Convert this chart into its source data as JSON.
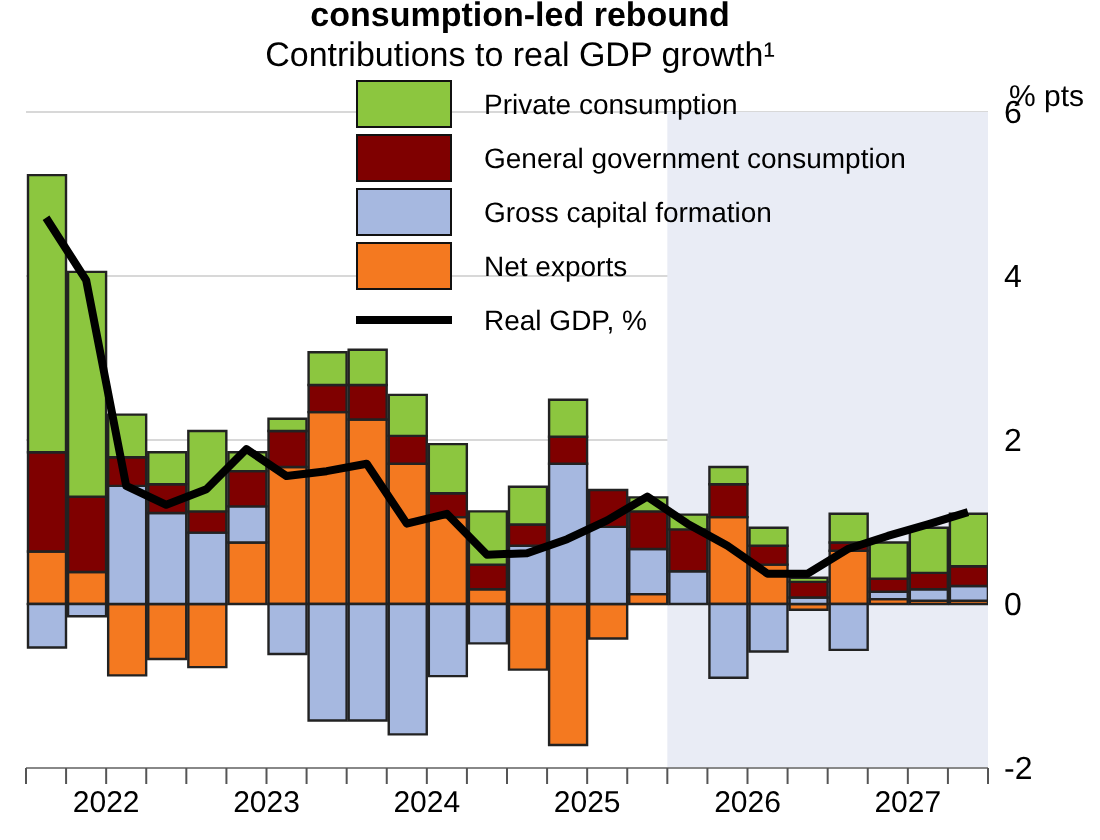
{
  "chart_data": {
    "type": "bar",
    "title": "consumption-led rebound",
    "subtitle": "Contributions to real GDP growth¹",
    "ylabel": "% pts",
    "stacked": true,
    "x": [
      2022.125,
      2022.375,
      2022.625,
      2022.875,
      2023.125,
      2023.375,
      2023.625,
      2023.875,
      2024.125,
      2024.375,
      2024.625,
      2024.875,
      2025.125,
      2025.375,
      2025.625,
      2025.875,
      2026.125,
      2026.375,
      2026.625,
      2026.875,
      2027.125,
      2027.375,
      2027.625,
      2027.875
    ],
    "series": [
      {
        "name": "Net exports",
        "color": "#f47920",
        "values": [
          0.64,
          0.39,
          -0.87,
          -0.67,
          -0.77,
          0.75,
          1.67,
          2.34,
          2.25,
          1.71,
          1.06,
          0.18,
          -0.8,
          -1.72,
          -0.42,
          0.12,
          null,
          1.06,
          0.48,
          -0.07,
          0.65,
          0.06,
          0.04,
          0.04
        ]
      },
      {
        "name": "Gross capital formation",
        "color": "#a6b8e0",
        "values": [
          -0.53,
          -0.15,
          1.44,
          1.11,
          0.87,
          0.44,
          -0.61,
          -1.42,
          -1.42,
          -1.59,
          -0.88,
          -0.48,
          0.71,
          1.71,
          0.94,
          0.55,
          0.4,
          -0.9,
          -0.58,
          0.08,
          -0.56,
          0.09,
          0.14,
          0.18
        ]
      },
      {
        "name": "General government consumption",
        "color": "#7f0000",
        "values": [
          1.21,
          0.92,
          0.35,
          0.35,
          0.26,
          0.43,
          0.44,
          0.33,
          0.42,
          0.34,
          0.29,
          0.3,
          0.26,
          0.33,
          0.45,
          0.46,
          0.51,
          0.4,
          0.23,
          0.19,
          0.1,
          0.16,
          0.2,
          0.24
        ]
      },
      {
        "name": "Private consumption",
        "color": "#8cc63f",
        "values": [
          3.38,
          2.74,
          0.52,
          0.39,
          0.98,
          0.23,
          0.15,
          0.4,
          0.43,
          0.5,
          0.6,
          0.65,
          0.46,
          0.45,
          0,
          0.17,
          0.18,
          0.21,
          0.22,
          0.05,
          0.35,
          0.44,
          0.55,
          0.64
        ]
      },
      {
        "name": "Real GDP, %",
        "type": "line",
        "color": "#000000",
        "values": [
          4.71,
          3.95,
          1.44,
          1.21,
          1.4,
          1.89,
          1.56,
          1.62,
          1.71,
          0.98,
          1.1,
          0.6,
          0.62,
          0.79,
          1.02,
          1.31,
          0.98,
          0.71,
          0.37,
          0.37,
          0.67,
          0.83,
          0.97,
          1.12
        ]
      }
    ],
    "xlim": [
      2022,
      2028
    ],
    "xticks": [
      {
        "value": 2022,
        "label": null
      },
      {
        "value": 2022.25,
        "label": null
      },
      {
        "value": 2022.5,
        "label": null
      },
      {
        "value": 2022.75,
        "label": null
      },
      {
        "value": 2023,
        "label": null
      },
      {
        "value": 2023.25,
        "label": null
      },
      {
        "value": 2023.5,
        "label": null
      },
      {
        "value": 2023.75,
        "label": null
      },
      {
        "value": 2024,
        "label": null
      },
      {
        "value": 2024.25,
        "label": null
      },
      {
        "value": 2024.5,
        "label": null
      },
      {
        "value": 2024.75,
        "label": null
      },
      {
        "value": 2025,
        "label": null
      },
      {
        "value": 2025.25,
        "label": null
      },
      {
        "value": 2025.5,
        "label": null
      },
      {
        "value": 2025.75,
        "label": null
      },
      {
        "value": 2026,
        "label": null
      },
      {
        "value": 2026.25,
        "label": null
      },
      {
        "value": 2026.5,
        "label": null
      },
      {
        "value": 2026.75,
        "label": null
      },
      {
        "value": 2027,
        "label": null
      },
      {
        "value": 2027.25,
        "label": null
      },
      {
        "value": 2027.5,
        "label": null
      },
      {
        "value": 2027.75,
        "label": null
      },
      {
        "value": 2028,
        "label": null
      },
      {
        "value": 2022.5,
        "label": "2022"
      },
      {
        "value": 2023.5,
        "label": "2023"
      },
      {
        "value": 2024.5,
        "label": "2024"
      },
      {
        "value": 2025.5,
        "label": "2025"
      },
      {
        "value": 2026.5,
        "label": "2026"
      },
      {
        "value": 2027.5,
        "label": "2027"
      }
    ],
    "ylim": [
      -2,
      6
    ],
    "yticks": [
      -2,
      0,
      2,
      4,
      6
    ],
    "bands": [
      {
        "axis": "x",
        "from": 2026,
        "to": 2028,
        "color": "#e9ecf5"
      }
    ],
    "grid": "y",
    "legend": "top",
    "marker": "none",
    "line_style": "solid"
  }
}
